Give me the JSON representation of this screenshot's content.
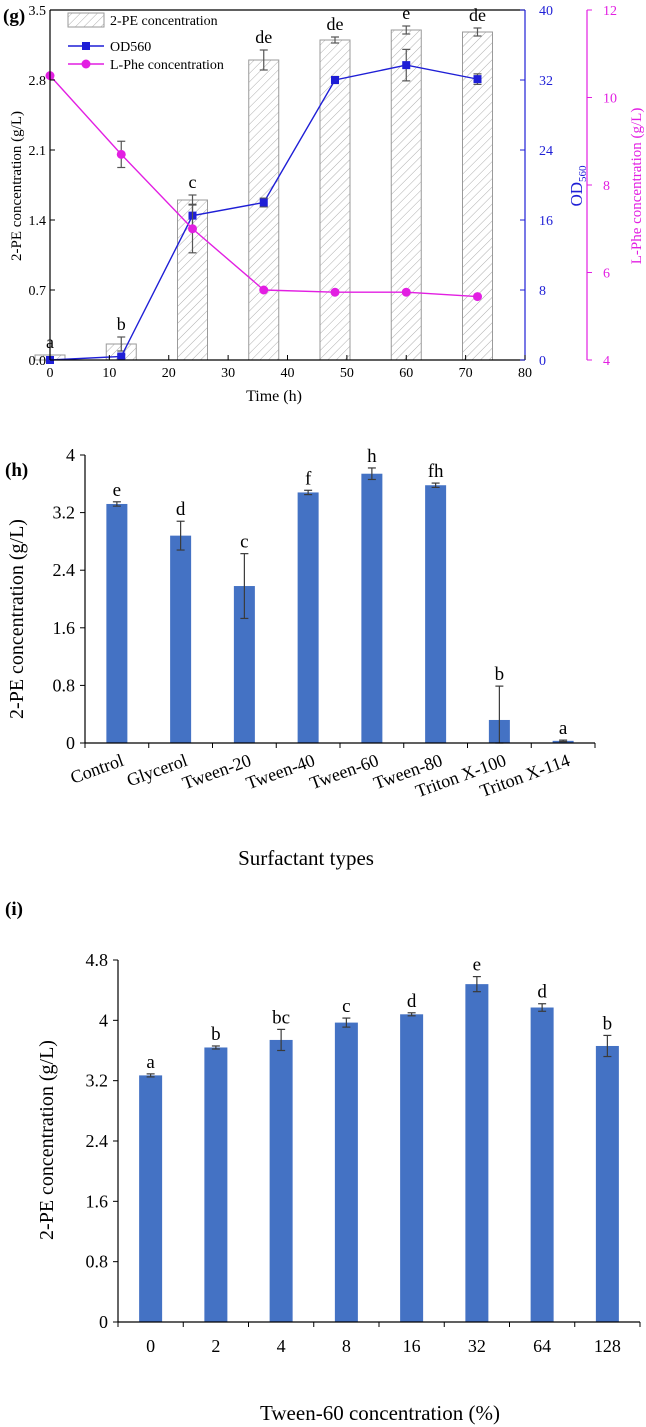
{
  "chart_data": [
    {
      "panel": "(g)",
      "type": "bar+line",
      "xlabel": "Time (h)",
      "xlim": [
        0,
        80
      ],
      "xticks": [
        0,
        10,
        20,
        30,
        40,
        50,
        60,
        70,
        80
      ],
      "axes": {
        "left": {
          "label": "2-PE concentration (g/L)",
          "ylim": [
            0,
            3.5
          ],
          "ticks": [
            "0.0",
            "0.7",
            "1.4",
            "2.1",
            "2.8",
            "3.5"
          ],
          "color": "#000000"
        },
        "right1": {
          "label_main": "OD",
          "label_sub": "560",
          "ylim": [
            0,
            40
          ],
          "ticks": [
            "0",
            "8",
            "16",
            "24",
            "32",
            "40"
          ],
          "color": "#1f1fd6"
        },
        "right2": {
          "label": "L-Phe concentration (g/L)",
          "ylim": [
            4,
            12
          ],
          "ticks": [
            "4",
            "6",
            "8",
            "10",
            "12"
          ],
          "color": "#e21fe2"
        }
      },
      "legend": {
        "position": "top-left",
        "entries": [
          "2-PE concentration",
          "OD560",
          "L-Phe concentration"
        ]
      },
      "x": [
        0,
        12,
        24,
        36,
        48,
        60,
        72
      ],
      "series": [
        {
          "name": "2-PE concentration",
          "kind": "bar",
          "axis": "left",
          "values": [
            0.05,
            0.16,
            1.6,
            3.0,
            3.2,
            3.3,
            3.28
          ],
          "errors": [
            0.0,
            0.07,
            0.05,
            0.1,
            0.03,
            0.04,
            0.04
          ],
          "letters": [
            "a",
            "b",
            "c",
            "de",
            "de",
            "e",
            "de"
          ]
        },
        {
          "name": "OD560",
          "kind": "line",
          "axis": "right1",
          "color": "#1f1fd6",
          "values": [
            0.0,
            0.4,
            16.5,
            18.0,
            32.0,
            33.7,
            32.1
          ],
          "errors": [
            0.0,
            0.2,
            1.3,
            0.5,
            0.4,
            1.8,
            0.6
          ]
        },
        {
          "name": "L-Phe concentration",
          "kind": "line",
          "axis": "right2",
          "color": "#e21fe2",
          "values": [
            10.5,
            8.7,
            7.0,
            5.6,
            5.55,
            5.55,
            5.45
          ],
          "errors": [
            0.0,
            0.3,
            0.55,
            0.0,
            0.0,
            0.0,
            0.0
          ]
        }
      ]
    },
    {
      "panel": "(h)",
      "type": "bar",
      "xlabel": "Surfactant types",
      "ylabel": "2-PE concentration (g/L)",
      "ylim": [
        0,
        4
      ],
      "yticks": [
        "0",
        "0.8",
        "1.6",
        "2.4",
        "3.2",
        "4"
      ],
      "bar_color": "#4472c4",
      "categories": [
        "Control",
        "Glycerol",
        "Tween-20",
        "Tween-40",
        "Tween-60",
        "Tween-80",
        "Triton X-100",
        "Triton X-114"
      ],
      "values": [
        3.32,
        2.88,
        2.18,
        3.48,
        3.74,
        3.58,
        0.32,
        0.03
      ],
      "errors": [
        0.03,
        0.2,
        0.45,
        0.03,
        0.08,
        0.03,
        0.47,
        0.01
      ],
      "letters": [
        "e",
        "d",
        "c",
        "f",
        "h",
        "fh",
        "b",
        "a"
      ]
    },
    {
      "panel": "(i)",
      "type": "bar",
      "xlabel": "Tween-60 concentration (%)",
      "ylabel": "2-PE concentration (g/L)",
      "ylim": [
        0,
        4.8
      ],
      "yticks": [
        "0",
        "0.8",
        "1.6",
        "2.4",
        "3.2",
        "4",
        "4.8"
      ],
      "bar_color": "#4472c4",
      "categories": [
        "0",
        "2",
        "4",
        "8",
        "16",
        "32",
        "64",
        "128"
      ],
      "values": [
        3.27,
        3.64,
        3.74,
        3.97,
        4.08,
        4.48,
        4.17,
        3.66
      ],
      "errors": [
        0.02,
        0.02,
        0.14,
        0.06,
        0.02,
        0.1,
        0.05,
        0.14
      ],
      "letters": [
        "a",
        "b",
        "bc",
        "c",
        "d",
        "e",
        "d",
        "b"
      ]
    }
  ]
}
